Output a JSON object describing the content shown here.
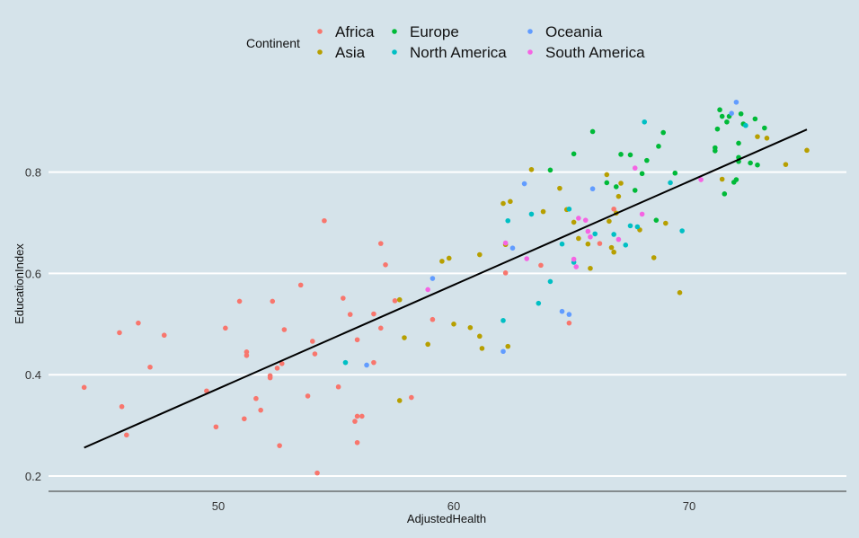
{
  "chart_data": {
    "type": "scatter",
    "title": "",
    "xlabel": "AdjustedHealth",
    "ylabel": "EducationIndex",
    "xlim": [
      42.5,
      76.0
    ],
    "ylim": [
      0.17,
      0.96
    ],
    "x_ticks": [
      50,
      60,
      70
    ],
    "y_ticks": [
      0.2,
      0.4,
      0.6,
      0.8
    ],
    "x_tick_labels": [
      "50",
      "60",
      "70"
    ],
    "y_tick_labels": [
      "0.2",
      "0.4",
      "0.6",
      "0.8"
    ],
    "grid": "horizontal major lines",
    "legend": {
      "title": "Continent",
      "position": "top",
      "entries": [
        {
          "name": "Africa",
          "color": "#F8766D"
        },
        {
          "name": "Asia",
          "color": "#B79F00"
        },
        {
          "name": "Europe",
          "color": "#00BA38"
        },
        {
          "name": "North America",
          "color": "#00BFC4"
        },
        {
          "name": "Oceania",
          "color": "#619CFF"
        },
        {
          "name": "South America",
          "color": "#F564E3"
        }
      ]
    },
    "trend_line": {
      "color": "#000000",
      "x": [
        44.3,
        75.0
      ],
      "y": [
        0.256,
        0.884
      ]
    },
    "series": [
      {
        "name": "Africa",
        "color": "#F8766D",
        "points": [
          [
            44.3,
            0.375
          ],
          [
            45.8,
            0.483
          ],
          [
            45.9,
            0.337
          ],
          [
            46.1,
            0.281
          ],
          [
            46.6,
            0.502
          ],
          [
            47.1,
            0.415
          ],
          [
            47.7,
            0.478
          ],
          [
            49.5,
            0.368
          ],
          [
            49.9,
            0.297
          ],
          [
            50.3,
            0.492
          ],
          [
            50.9,
            0.545
          ],
          [
            51.1,
            0.313
          ],
          [
            51.2,
            0.445
          ],
          [
            51.2,
            0.438
          ],
          [
            51.6,
            0.353
          ],
          [
            51.8,
            0.33
          ],
          [
            52.2,
            0.398
          ],
          [
            52.2,
            0.394
          ],
          [
            52.3,
            0.545
          ],
          [
            52.5,
            0.413
          ],
          [
            52.6,
            0.26
          ],
          [
            52.7,
            0.422
          ],
          [
            52.8,
            0.489
          ],
          [
            53.5,
            0.577
          ],
          [
            53.8,
            0.358
          ],
          [
            54.0,
            0.466
          ],
          [
            54.1,
            0.441
          ],
          [
            54.2,
            0.206
          ],
          [
            54.5,
            0.704
          ],
          [
            55.1,
            0.376
          ],
          [
            55.3,
            0.551
          ],
          [
            55.6,
            0.519
          ],
          [
            55.8,
            0.308
          ],
          [
            55.9,
            0.318
          ],
          [
            55.9,
            0.469
          ],
          [
            55.9,
            0.266
          ],
          [
            56.1,
            0.318
          ],
          [
            56.6,
            0.424
          ],
          [
            56.6,
            0.52
          ],
          [
            56.9,
            0.492
          ],
          [
            56.9,
            0.659
          ],
          [
            57.1,
            0.617
          ],
          [
            57.5,
            0.546
          ],
          [
            58.2,
            0.355
          ],
          [
            59.1,
            0.509
          ],
          [
            62.2,
            0.601
          ],
          [
            63.7,
            0.616
          ],
          [
            64.9,
            0.502
          ],
          [
            66.2,
            0.659
          ],
          [
            66.8,
            0.727
          ]
        ]
      },
      {
        "name": "Asia",
        "color": "#B79F00",
        "points": [
          [
            57.7,
            0.548
          ],
          [
            57.7,
            0.349
          ],
          [
            57.9,
            0.473
          ],
          [
            58.9,
            0.46
          ],
          [
            59.5,
            0.624
          ],
          [
            59.8,
            0.63
          ],
          [
            60.0,
            0.5
          ],
          [
            60.7,
            0.493
          ],
          [
            61.1,
            0.637
          ],
          [
            61.1,
            0.476
          ],
          [
            61.2,
            0.452
          ],
          [
            62.1,
            0.738
          ],
          [
            62.2,
            0.657
          ],
          [
            62.3,
            0.456
          ],
          [
            62.4,
            0.742
          ],
          [
            63.3,
            0.805
          ],
          [
            63.8,
            0.722
          ],
          [
            64.5,
            0.768
          ],
          [
            64.8,
            0.726
          ],
          [
            65.1,
            0.701
          ],
          [
            65.3,
            0.669
          ],
          [
            65.7,
            0.658
          ],
          [
            65.8,
            0.61
          ],
          [
            66.5,
            0.795
          ],
          [
            66.6,
            0.703
          ],
          [
            66.7,
            0.651
          ],
          [
            66.8,
            0.642
          ],
          [
            66.9,
            0.719
          ],
          [
            67.0,
            0.752
          ],
          [
            67.1,
            0.778
          ],
          [
            67.9,
            0.686
          ],
          [
            68.5,
            0.631
          ],
          [
            69.0,
            0.699
          ],
          [
            69.6,
            0.562
          ],
          [
            71.4,
            0.786
          ],
          [
            72.9,
            0.87
          ],
          [
            73.3,
            0.867
          ],
          [
            74.1,
            0.815
          ],
          [
            75.0,
            0.843
          ]
        ]
      },
      {
        "name": "Europe",
        "color": "#00BA38",
        "points": [
          [
            64.1,
            0.804
          ],
          [
            65.1,
            0.836
          ],
          [
            65.9,
            0.88
          ],
          [
            66.5,
            0.779
          ],
          [
            66.9,
            0.771
          ],
          [
            67.1,
            0.835
          ],
          [
            67.5,
            0.834
          ],
          [
            67.7,
            0.764
          ],
          [
            68.0,
            0.797
          ],
          [
            68.2,
            0.823
          ],
          [
            68.6,
            0.705
          ],
          [
            68.7,
            0.851
          ],
          [
            68.9,
            0.878
          ],
          [
            69.4,
            0.798
          ],
          [
            71.1,
            0.848
          ],
          [
            71.1,
            0.842
          ],
          [
            71.2,
            0.885
          ],
          [
            71.3,
            0.923
          ],
          [
            71.4,
            0.91
          ],
          [
            71.5,
            0.757
          ],
          [
            71.6,
            0.899
          ],
          [
            71.7,
            0.91
          ],
          [
            71.9,
            0.78
          ],
          [
            72.0,
            0.785
          ],
          [
            72.1,
            0.829
          ],
          [
            72.1,
            0.821
          ],
          [
            72.1,
            0.857
          ],
          [
            72.2,
            0.915
          ],
          [
            72.3,
            0.895
          ],
          [
            72.6,
            0.818
          ],
          [
            72.8,
            0.905
          ],
          [
            72.9,
            0.814
          ],
          [
            73.2,
            0.887
          ]
        ]
      },
      {
        "name": "North America",
        "color": "#00BFC4",
        "points": [
          [
            55.4,
            0.424
          ],
          [
            62.1,
            0.507
          ],
          [
            62.3,
            0.704
          ],
          [
            63.3,
            0.717
          ],
          [
            63.6,
            0.541
          ],
          [
            64.1,
            0.584
          ],
          [
            64.6,
            0.658
          ],
          [
            64.9,
            0.727
          ],
          [
            65.1,
            0.622
          ],
          [
            66.0,
            0.678
          ],
          [
            66.8,
            0.677
          ],
          [
            67.3,
            0.656
          ],
          [
            67.5,
            0.694
          ],
          [
            67.8,
            0.692
          ],
          [
            68.1,
            0.899
          ],
          [
            69.2,
            0.779
          ],
          [
            69.7,
            0.684
          ],
          [
            72.4,
            0.892
          ]
        ]
      },
      {
        "name": "Oceania",
        "color": "#619CFF",
        "points": [
          [
            56.3,
            0.419
          ],
          [
            59.1,
            0.59
          ],
          [
            62.1,
            0.446
          ],
          [
            62.5,
            0.65
          ],
          [
            63.0,
            0.777
          ],
          [
            64.6,
            0.525
          ],
          [
            64.9,
            0.519
          ],
          [
            65.9,
            0.767
          ],
          [
            71.8,
            0.916
          ],
          [
            72.0,
            0.938
          ]
        ]
      },
      {
        "name": "South America",
        "color": "#F564E3",
        "points": [
          [
            58.9,
            0.568
          ],
          [
            62.2,
            0.66
          ],
          [
            63.1,
            0.629
          ],
          [
            65.1,
            0.628
          ],
          [
            65.2,
            0.613
          ],
          [
            65.3,
            0.709
          ],
          [
            65.6,
            0.705
          ],
          [
            65.7,
            0.683
          ],
          [
            65.8,
            0.672
          ],
          [
            67.0,
            0.667
          ],
          [
            67.7,
            0.808
          ],
          [
            68.0,
            0.717
          ],
          [
            70.5,
            0.785
          ]
        ]
      }
    ]
  }
}
